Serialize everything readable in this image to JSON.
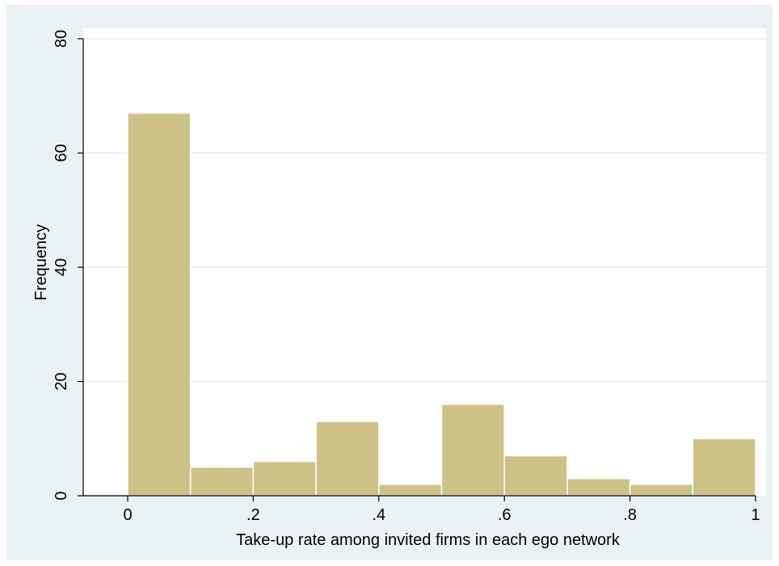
{
  "chart_data": {
    "type": "bar",
    "subtype": "histogram",
    "xlabel": "Take-up rate among invited firms in each ego network",
    "ylabel": "Frequency",
    "xlim": [
      0,
      1
    ],
    "ylim": [
      0,
      80
    ],
    "x_ticks": [
      "0",
      ".2",
      ".4",
      ".6",
      ".8",
      "1"
    ],
    "x_tick_values": [
      0,
      0.2,
      0.4,
      0.6,
      0.8,
      1
    ],
    "y_ticks": [
      "0",
      "20",
      "40",
      "60",
      "80"
    ],
    "y_tick_values": [
      0,
      20,
      40,
      60,
      80
    ],
    "bins": [
      {
        "from": 0.0,
        "to": 0.1,
        "value": 67
      },
      {
        "from": 0.1,
        "to": 0.2,
        "value": 5
      },
      {
        "from": 0.2,
        "to": 0.3,
        "value": 6
      },
      {
        "from": 0.3,
        "to": 0.4,
        "value": 13
      },
      {
        "from": 0.4,
        "to": 0.5,
        "value": 2
      },
      {
        "from": 0.5,
        "to": 0.6,
        "value": 16
      },
      {
        "from": 0.6,
        "to": 0.7,
        "value": 7
      },
      {
        "from": 0.7,
        "to": 0.8,
        "value": 3
      },
      {
        "from": 0.8,
        "to": 0.9,
        "value": 2
      },
      {
        "from": 0.9,
        "to": 1.0,
        "value": 10
      }
    ],
    "grid": "horizontal",
    "colors": {
      "bar_fill": "#cdc285",
      "bar_stroke": "#ffffff",
      "plot_background": "#ffffff",
      "outer_background": "#eaf2f3",
      "grid": "#eaf2f3",
      "axis": "#000000"
    }
  }
}
